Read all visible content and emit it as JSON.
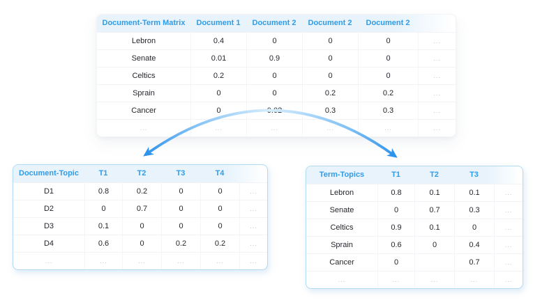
{
  "diagram_title": "document-term-matrix-factorization",
  "colors": {
    "accent_blue": "#2f9ce8",
    "header_bg": "#e8f3fc",
    "table_border_blue": "#b3daf3",
    "arrow_blue": "#2e93ec",
    "arrow_light_blue": "#cfe9fb",
    "cell_text": "#24262b",
    "ellipsis_gray": "#c0c5cb",
    "page_bg": "#ffffff"
  },
  "tables": {
    "document_term": {
      "title": "Document-Term Matrix",
      "header": [
        "Document-Term Matrix",
        "Document 1",
        "Document 2",
        "Document 2",
        "Document 2",
        ""
      ],
      "rows": [
        [
          "Lebron",
          "0.4",
          "0",
          "0",
          "0",
          "..."
        ],
        [
          "Senate",
          "0.01",
          "0.9",
          "0",
          "0",
          "..."
        ],
        [
          "Celtics",
          "0.2",
          "0",
          "0",
          "0",
          "..."
        ],
        [
          "Sprain",
          "0",
          "0",
          "0.2",
          "0.2",
          "..."
        ],
        [
          "Cancer",
          "0",
          "0.02",
          "0.3",
          "0.3",
          "..."
        ],
        [
          "...",
          "...",
          "...",
          "...",
          "...",
          "..."
        ]
      ]
    },
    "document_topic": {
      "title": "Document-Topic",
      "header": [
        "Document-Topic",
        "T1",
        "T2",
        "T3",
        "T4",
        ""
      ],
      "rows": [
        [
          "D1",
          "0.8",
          "0.2",
          "0",
          "0",
          "..."
        ],
        [
          "D2",
          "0",
          "0.7",
          "0",
          "0",
          "..."
        ],
        [
          "D3",
          "0.1",
          "0",
          "0",
          "0",
          "..."
        ],
        [
          "D4",
          "0.6",
          "0",
          "0.2",
          "0.2",
          "..."
        ],
        [
          "...",
          "...",
          "...",
          "...",
          "...",
          "..."
        ]
      ]
    },
    "term_topics": {
      "title": "Term-Topics",
      "header": [
        "Term-Topics",
        "T1",
        "T2",
        "T3",
        ""
      ],
      "rows": [
        [
          "Lebron",
          "0.8",
          "0.1",
          "0.1",
          "..."
        ],
        [
          "Senate",
          "0",
          "0.7",
          "0.3",
          "..."
        ],
        [
          "Celtics",
          "0.9",
          "0.1",
          "0",
          "..."
        ],
        [
          "Sprain",
          "0.6",
          "0",
          "0.4",
          "..."
        ],
        [
          "Cancer",
          "0",
          "",
          "0.7",
          "..."
        ],
        [
          "...",
          "...",
          "...",
          "...",
          "..."
        ]
      ]
    }
  }
}
